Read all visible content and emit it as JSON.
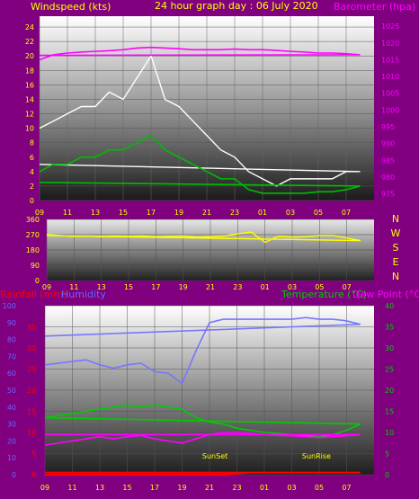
{
  "titles": {
    "windspeed": "Windspeed (kts)",
    "graph_day": "24 hour graph day : 06 July 2020",
    "barometer": "Barometer (hpa)",
    "rainfall": "Rainfall (mm)",
    "humidity": "Humidity",
    "temperature": "Temperature (°C)",
    "dewpoint": "Dew Point (°C)",
    "sunset": "SunSet",
    "sunrise": "SunRise"
  },
  "colors": {
    "background": "#800080",
    "title": "#ffff00",
    "barometer": "#ff00ff",
    "rainfall": "#ff0000",
    "humidity": "#6666ff",
    "temperature": "#00cc00",
    "dewpoint": "#ff00ff",
    "wind_gust": "#ffffff",
    "wind_avg": "#00bb00",
    "direction": "#ffff00"
  },
  "compass": [
    "N",
    "W",
    "S",
    "E",
    "N"
  ],
  "time_labels": [
    "11",
    "13",
    "15",
    "17",
    "19",
    "21",
    "23",
    "01",
    "03",
    "05",
    "07",
    "09"
  ],
  "chart_data": [
    {
      "type": "line",
      "name": "wind",
      "x_ticks": [
        "11",
        "13",
        "15",
        "17",
        "19",
        "21",
        "23",
        "01",
        "03",
        "05",
        "07",
        "09"
      ],
      "y_left_ticks": [
        0,
        2,
        4,
        6,
        8,
        10,
        12,
        14,
        16,
        18,
        20,
        22,
        24
      ],
      "y_left_range": [
        0,
        25.5
      ],
      "y_right_ticks": [
        975,
        980,
        985,
        990,
        995,
        1000,
        1005,
        1010,
        1015,
        1020,
        1025
      ],
      "y_right_range": [
        973,
        1028
      ],
      "hours": [
        9,
        10,
        11,
        12,
        13,
        14,
        15,
        16,
        17,
        18,
        19,
        20,
        21,
        22,
        23,
        0,
        1,
        2,
        3,
        4,
        5,
        6,
        7,
        8,
        9
      ],
      "gust": [
        10,
        11,
        12,
        13,
        13,
        15,
        14,
        17,
        20,
        14,
        13,
        11,
        9,
        7,
        6,
        4,
        3,
        2,
        3,
        3,
        3,
        3,
        4,
        4,
        5
      ],
      "average": [
        4,
        5,
        5,
        6,
        6,
        7,
        7,
        8,
        9,
        7,
        6,
        5,
        4,
        3,
        3,
        1.5,
        1,
        1,
        1,
        1,
        1.2,
        1.2,
        1.5,
        2,
        2.5
      ],
      "barometer": [
        1015,
        1016.5,
        1017,
        1017.3,
        1017.5,
        1017.7,
        1018,
        1018.5,
        1018.7,
        1018.5,
        1018.3,
        1018,
        1018,
        1018,
        1018.2,
        1018,
        1018,
        1017.8,
        1017.5,
        1017.3,
        1017,
        1017,
        1016.8,
        1016.5,
        1016.3
      ]
    },
    {
      "type": "line",
      "name": "wind direction",
      "x_ticks": [
        "11",
        "13",
        "15",
        "17",
        "19",
        "21",
        "23",
        "01",
        "03",
        "05",
        "07",
        "09"
      ],
      "y_ticks": [
        0,
        90,
        180,
        270,
        360
      ],
      "y_range": [
        0,
        360
      ],
      "hours": [
        9,
        10,
        11,
        12,
        13,
        14,
        15,
        16,
        17,
        18,
        19,
        20,
        21,
        22,
        23,
        0,
        1,
        2,
        3,
        4,
        5,
        6,
        7,
        8,
        9
      ],
      "direction": [
        270,
        265,
        260,
        262,
        258,
        262,
        260,
        262,
        258,
        260,
        262,
        255,
        258,
        262,
        275,
        285,
        225,
        260,
        255,
        258,
        265,
        265,
        250,
        235,
        265
      ]
    },
    {
      "type": "line",
      "name": "temperature",
      "x_ticks": [
        "11",
        "13",
        "15",
        "17",
        "19",
        "21",
        "23",
        "01",
        "03",
        "05",
        "07",
        "09"
      ],
      "y_left_ticks": [
        0,
        10,
        20,
        30,
        40,
        50,
        60,
        70,
        80,
        90,
        100
      ],
      "y_left_range": [
        0,
        100
      ],
      "y_rain_ticks": [
        0,
        5,
        10,
        15,
        20,
        25,
        30,
        35
      ],
      "y_right_ticks": [
        0,
        5,
        10,
        15,
        20,
        25,
        30,
        35,
        40
      ],
      "y_right_range": [
        0,
        40
      ],
      "hours": [
        9,
        10,
        11,
        12,
        13,
        14,
        15,
        16,
        17,
        18,
        19,
        20,
        21,
        22,
        23,
        0,
        1,
        2,
        3,
        4,
        5,
        6,
        7,
        8,
        9
      ],
      "humidity": [
        65,
        66,
        67,
        68,
        65,
        63,
        65,
        66,
        61,
        60,
        54,
        73,
        90,
        92,
        92,
        92,
        92,
        92,
        92,
        93,
        92,
        92,
        91,
        89,
        82
      ],
      "temperature": [
        13.5,
        14,
        14.5,
        15,
        15.5,
        16,
        16.5,
        16,
        16.5,
        16,
        15.5,
        13.5,
        12.5,
        12,
        11,
        10.5,
        10,
        9.8,
        9.5,
        9.3,
        9,
        9.5,
        10.5,
        12,
        13.5
      ],
      "dewpoint": [
        7,
        7.5,
        8,
        8.5,
        9,
        8.5,
        9,
        9.3,
        8.5,
        8,
        7.5,
        8.5,
        9.5,
        10,
        10,
        9.8,
        9.5,
        9.3,
        9.2,
        9,
        8.8,
        9,
        9.2,
        9.5,
        9.5
      ],
      "rainfall": [
        0,
        0,
        0,
        0,
        0,
        0,
        0,
        0,
        0,
        0,
        0,
        0,
        0,
        0,
        0.3,
        0.5,
        0.5,
        0.5,
        0.5,
        0.5,
        0.5,
        0.5,
        0.5,
        0.5,
        0.5
      ],
      "events": [
        {
          "label": "SunSet",
          "hour": 21.4
        },
        {
          "label": "SunRise",
          "hour": 4.8
        }
      ]
    }
  ]
}
